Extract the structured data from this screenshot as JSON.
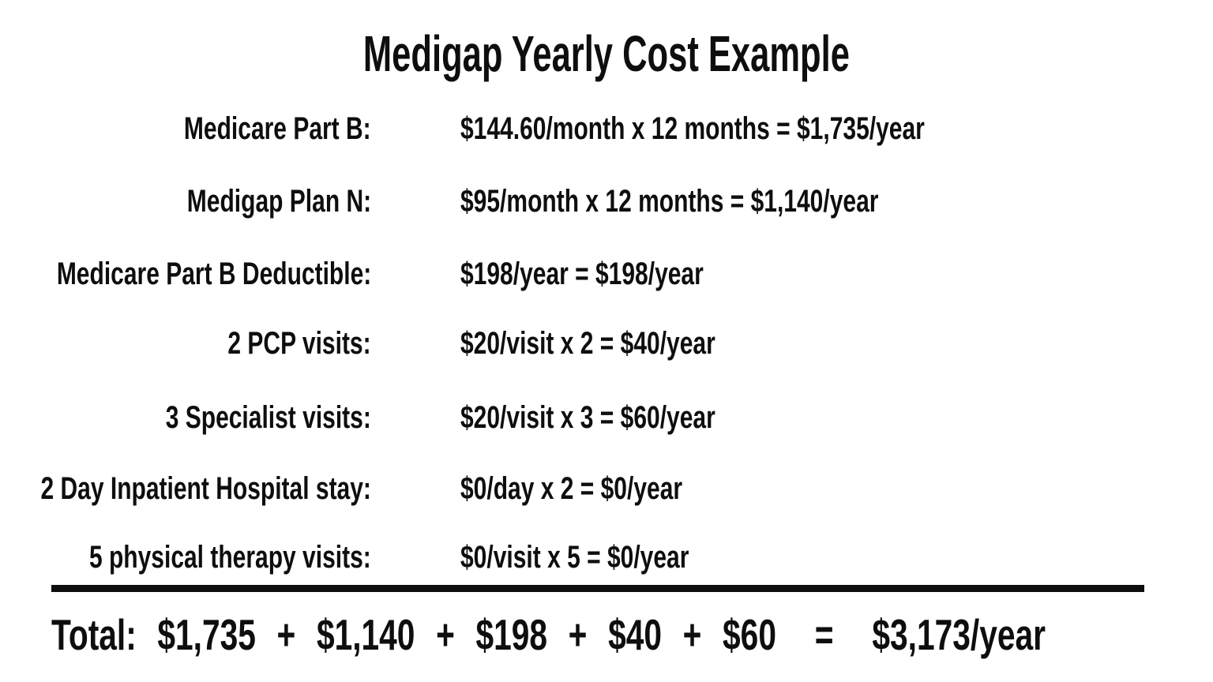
{
  "page": {
    "background_color": "#ffffff",
    "text_color": "#0e0e0e"
  },
  "title": "Medigap Yearly Cost Example",
  "rows": [
    {
      "label": "Medicare Part B:",
      "value": "$144.60/month x 12 months = $1,735/year"
    },
    {
      "label": "Medigap Plan N:",
      "value": "$95/month x 12 months = $1,140/year"
    },
    {
      "label": "Medicare Part B Deductible:",
      "value": "$198/year = $198/year"
    },
    {
      "label": "2 PCP visits:",
      "value": "$20/visit x 2 = $40/year"
    },
    {
      "label": "3 Specialist visits:",
      "value": "$20/visit x 3 = $60/year"
    },
    {
      "label": "2 Day Inpatient Hospital stay:",
      "value": "$0/day x 2 = $0/year"
    },
    {
      "label": "5 physical therapy visits:",
      "value": "$0/visit x 5 = $0/year"
    }
  ],
  "total": {
    "label": "Total:",
    "terms": [
      "$1,735",
      "$1,140",
      "$198",
      "$40",
      "$60"
    ],
    "plus": "+",
    "equals": "=",
    "result": "$3,173/year"
  }
}
